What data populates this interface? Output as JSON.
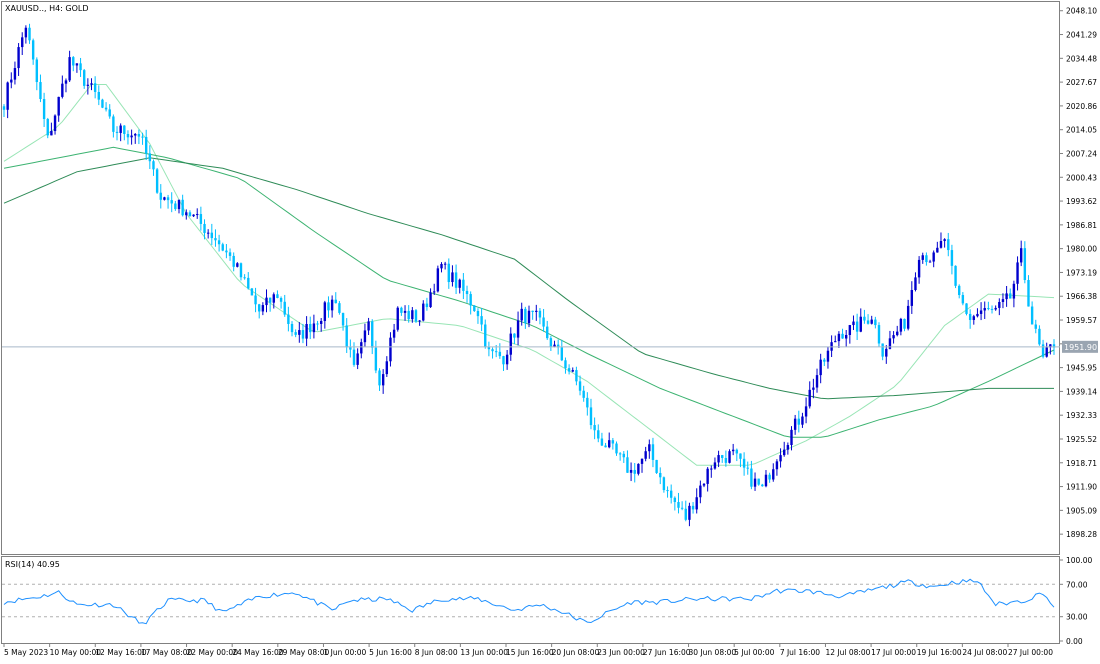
{
  "window": {
    "symbol_label": "XAUUSD.., H4:  GOLD",
    "rsi_label": "RSI(14) 40.95"
  },
  "colors": {
    "background": "#ffffff",
    "frame": "#808080",
    "bull_candle": "#0000cd",
    "bear_candle": "#00bfff",
    "ma_fast": "#98e5b5",
    "ma_mid": "#3cb371",
    "ma_slow": "#2e8b57",
    "rsi_line": "#1e90ff",
    "price_line": "#a9b9c9",
    "price_label_bg": "#9aa5b1"
  },
  "chart_data": [
    {
      "type": "candlestick",
      "title": "XAUUSD.., H4:  GOLD",
      "ylim": [
        1892.6,
        2050.6
      ],
      "y_ticks": [
        2048.1,
        2041.29,
        2034.48,
        2027.67,
        2020.86,
        2014.05,
        2007.24,
        2000.43,
        1993.62,
        1986.81,
        1980.0,
        1973.19,
        1966.38,
        1959.57,
        1952.76,
        1945.95,
        1939.14,
        1932.33,
        1925.52,
        1918.71,
        1911.9,
        1905.09,
        1898.28
      ],
      "x_labels": [
        "5 May 2023",
        "10 May 00:00",
        "12 May 16:00",
        "17 May 08:00",
        "22 May 00:00",
        "24 May 16:00",
        "29 May 08:00",
        "1 Jun 00:00",
        "5 Jun 16:00",
        "8 Jun 08:00",
        "13 Jun 00:00",
        "15 Jun 16:00",
        "20 Jun 08:00",
        "23 Jun 00:00",
        "27 Jun 16:00",
        "30 Jun 08:00",
        "5 Jul 00:00",
        "7 Jul 16:00",
        "12 Jul 08:00",
        "17 Jul 00:00",
        "19 Jul 16:00",
        "24 Jul 08:00",
        "27 Jul 00:00"
      ],
      "current_price": 1951.9,
      "current_price_label": "1951.90",
      "close_path": [
        [
          0,
          2022
        ],
        [
          6,
          2044
        ],
        [
          12,
          2011
        ],
        [
          18,
          2034
        ],
        [
          25,
          2024
        ],
        [
          30,
          2014
        ],
        [
          37,
          2013
        ],
        [
          43,
          1995
        ],
        [
          50,
          1991
        ],
        [
          58,
          1983
        ],
        [
          63,
          1976
        ],
        [
          70,
          1962
        ],
        [
          75,
          1967
        ],
        [
          80,
          1954
        ],
        [
          86,
          1960
        ],
        [
          91,
          1966
        ],
        [
          96,
          1945
        ],
        [
          100,
          1958
        ],
        [
          103,
          1942
        ],
        [
          108,
          1962
        ],
        [
          114,
          1960
        ],
        [
          120,
          1975
        ],
        [
          125,
          1969
        ],
        [
          130,
          1962
        ],
        [
          133,
          1950
        ],
        [
          137,
          1949
        ],
        [
          142,
          1961
        ],
        [
          146,
          1960
        ],
        [
          150,
          1953
        ],
        [
          154,
          1947
        ],
        [
          158,
          1940
        ],
        [
          162,
          1927
        ],
        [
          167,
          1922
        ],
        [
          172,
          1916
        ],
        [
          177,
          1922
        ],
        [
          182,
          1910
        ],
        [
          187,
          1903
        ],
        [
          191,
          1912
        ],
        [
          195,
          1920
        ],
        [
          200,
          1921
        ],
        [
          204,
          1915
        ],
        [
          208,
          1911
        ],
        [
          212,
          1921
        ],
        [
          218,
          1931
        ],
        [
          223,
          1944
        ],
        [
          229,
          1956
        ],
        [
          233,
          1957
        ],
        [
          238,
          1961
        ],
        [
          241,
          1951
        ],
        [
          247,
          1959
        ],
        [
          251,
          1979
        ],
        [
          255,
          1977
        ],
        [
          258,
          1983
        ],
        [
          261,
          1968
        ],
        [
          265,
          1960
        ],
        [
          268,
          1962
        ],
        [
          272,
          1962
        ],
        [
          276,
          1966
        ],
        [
          279,
          1978
        ],
        [
          282,
          1959
        ],
        [
          285,
          1948
        ],
        [
          288,
          1953
        ]
      ],
      "overlays": [
        {
          "name": "",
          "color": "#98e5b5",
          "points": [
            [
              0,
              2005
            ],
            [
              15,
              2015
            ],
            [
              24,
              2027
            ],
            [
              28,
              2027
            ],
            [
              40,
              2010
            ],
            [
              50,
              1990
            ],
            [
              65,
              1970
            ],
            [
              85,
              1956
            ],
            [
              105,
              1960
            ],
            [
              125,
              1958
            ],
            [
              145,
              1951
            ],
            [
              160,
              1942
            ],
            [
              175,
              1930
            ],
            [
              190,
              1918
            ],
            [
              205,
              1918
            ],
            [
              220,
              1925
            ],
            [
              232,
              1932
            ],
            [
              245,
              1941
            ],
            [
              258,
              1958
            ],
            [
              270,
              1967
            ],
            [
              288,
              1966
            ]
          ]
        },
        {
          "name": "",
          "color": "#3cb371",
          "points": [
            [
              0,
              2003
            ],
            [
              15,
              2006
            ],
            [
              30,
              2009
            ],
            [
              45,
              2006
            ],
            [
              65,
              2000
            ],
            [
              85,
              1985
            ],
            [
              105,
              1971
            ],
            [
              125,
              1965
            ],
            [
              145,
              1958
            ],
            [
              160,
              1950
            ],
            [
              180,
              1940
            ],
            [
              200,
              1932
            ],
            [
              215,
              1926
            ],
            [
              225,
              1926
            ],
            [
              240,
              1931
            ],
            [
              255,
              1935
            ],
            [
              270,
              1942
            ],
            [
              288,
              1951
            ]
          ]
        },
        {
          "name": "",
          "color": "#2e8b57",
          "points": [
            [
              0,
              1993
            ],
            [
              20,
              2002
            ],
            [
              40,
              2006
            ],
            [
              60,
              2003
            ],
            [
              80,
              1997
            ],
            [
              100,
              1990
            ],
            [
              120,
              1984
            ],
            [
              140,
              1977
            ],
            [
              155,
              1965
            ],
            [
              175,
              1950
            ],
            [
              195,
              1944
            ],
            [
              210,
              1940
            ],
            [
              225,
              1937
            ],
            [
              245,
              1938
            ],
            [
              270,
              1940
            ],
            [
              288,
              1940
            ]
          ]
        }
      ]
    },
    {
      "type": "line",
      "title": "RSI(14) 40.95",
      "ylim": [
        0,
        100
      ],
      "y_ticks": [
        100.0,
        70.0,
        30.0,
        0.0
      ],
      "levels": [
        70,
        30
      ],
      "series": [
        {
          "name": "",
          "color": "#1e90ff",
          "points": [
            [
              0,
              48
            ],
            [
              10,
              55
            ],
            [
              15,
              60
            ],
            [
              20,
              45
            ],
            [
              30,
              45
            ],
            [
              38,
              20
            ],
            [
              45,
              50
            ],
            [
              55,
              50
            ],
            [
              60,
              35
            ],
            [
              70,
              55
            ],
            [
              80,
              60
            ],
            [
              90,
              38
            ],
            [
              95,
              50
            ],
            [
              105,
              52
            ],
            [
              112,
              38
            ],
            [
              120,
              52
            ],
            [
              130,
              52
            ],
            [
              140,
              38
            ],
            [
              147,
              45
            ],
            [
              153,
              36
            ],
            [
              160,
              22
            ],
            [
              166,
              36
            ],
            [
              172,
              48
            ],
            [
              180,
              48
            ],
            [
              190,
              52
            ],
            [
              205,
              52
            ],
            [
              212,
              62
            ],
            [
              220,
              62
            ],
            [
              230,
              55
            ],
            [
              240,
              65
            ],
            [
              248,
              73
            ],
            [
              255,
              67
            ],
            [
              261,
              73
            ],
            [
              267,
              74
            ],
            [
              272,
              45
            ],
            [
              280,
              50
            ],
            [
              285,
              60
            ],
            [
              288,
              41
            ]
          ]
        }
      ]
    }
  ]
}
